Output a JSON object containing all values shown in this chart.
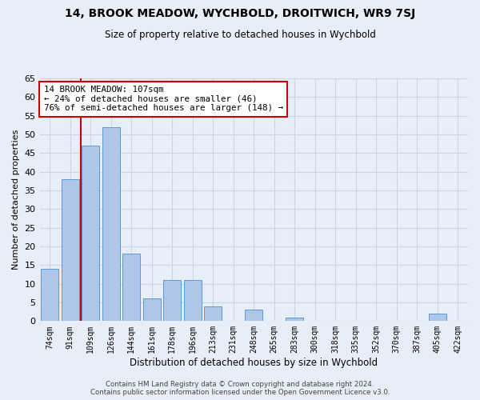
{
  "title": "14, BROOK MEADOW, WYCHBOLD, DROITWICH, WR9 7SJ",
  "subtitle": "Size of property relative to detached houses in Wychbold",
  "xlabel": "Distribution of detached houses by size in Wychbold",
  "ylabel": "Number of detached properties",
  "categories": [
    "74sqm",
    "91sqm",
    "109sqm",
    "126sqm",
    "144sqm",
    "161sqm",
    "178sqm",
    "196sqm",
    "213sqm",
    "231sqm",
    "248sqm",
    "265sqm",
    "283sqm",
    "300sqm",
    "318sqm",
    "335sqm",
    "352sqm",
    "370sqm",
    "387sqm",
    "405sqm",
    "422sqm"
  ],
  "values": [
    14,
    38,
    47,
    52,
    18,
    6,
    11,
    11,
    4,
    0,
    3,
    0,
    1,
    0,
    0,
    0,
    0,
    0,
    0,
    2,
    0
  ],
  "bar_color": "#aec6e8",
  "bar_edge_color": "#5b9bd5",
  "vline_bin_index": 2,
  "annotation_title": "14 BROOK MEADOW: 107sqm",
  "annotation_line1": "← 24% of detached houses are smaller (46)",
  "annotation_line2": "76% of semi-detached houses are larger (148) →",
  "annotation_box_color": "#ffffff",
  "annotation_box_edge_color": "#cc0000",
  "vline_color": "#cc0000",
  "grid_color": "#c8d4e8",
  "bg_color": "#e8eef7",
  "footer_line1": "Contains HM Land Registry data © Crown copyright and database right 2024.",
  "footer_line2": "Contains public sector information licensed under the Open Government Licence v3.0.",
  "ylim": [
    0,
    65
  ],
  "yticks": [
    0,
    5,
    10,
    15,
    20,
    25,
    30,
    35,
    40,
    45,
    50,
    55,
    60,
    65
  ]
}
